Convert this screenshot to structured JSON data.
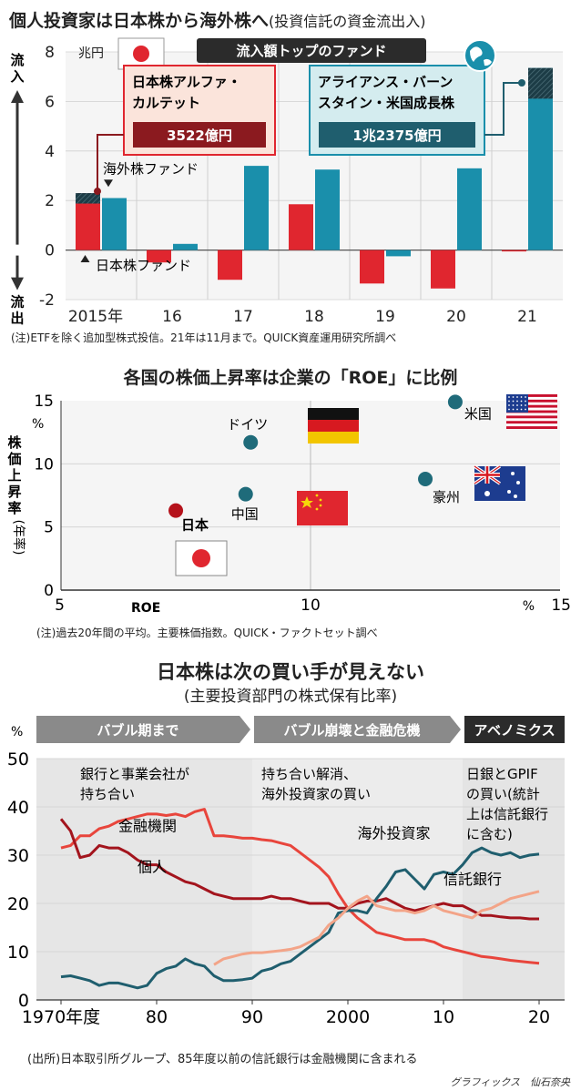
{
  "chart_data": [
    {
      "type": "bar",
      "title": "個人投資家は日本株から海外株へ",
      "subtitle": "(投資信託の資金流出入)",
      "unit": "兆円",
      "axis_labels": {
        "up": "流入",
        "down": "流出"
      },
      "categories": [
        "2015年",
        "16",
        "17",
        "18",
        "19",
        "20",
        "21"
      ],
      "series": [
        {
          "name": "日本株ファンド",
          "color": "#e0262f",
          "values": [
            2.3,
            -0.5,
            -1.2,
            1.85,
            -1.35,
            -1.55,
            -0.05
          ]
        },
        {
          "name": "海外株ファンド",
          "color": "#1a8fab",
          "values": [
            2.1,
            0.25,
            3.4,
            3.25,
            -0.25,
            3.3,
            7.35
          ]
        }
      ],
      "ylim": [
        -2,
        8
      ],
      "yticks": [
        -2,
        0,
        2,
        4,
        6,
        8
      ],
      "callout_header": "流入額トップのファンド",
      "callouts": [
        {
          "name": "日本株アルファ・カルテット",
          "line1": "日本株アルファ・",
          "line2": "カルテット",
          "value": "3522億円",
          "value_num": 0.3522,
          "category": "2015年"
        },
        {
          "name": "アライアンス・バーンスタイン・米国成長株",
          "line1": "アライアンス・バーン",
          "line2": "スタイン・米国成長株",
          "value": "1兆2375億円",
          "value_num": 1.2375,
          "category": "21"
        }
      ],
      "note": "(注)ETFを除く追加型株式投信。21年は11月まで。QUICK資産運用研究所調べ"
    },
    {
      "type": "scatter",
      "title": "各国の株価上昇率は企業の「ROE」に比例",
      "ylabel": "株価上昇率",
      "ylabel_sub": "(年率)",
      "y_unit": "%",
      "x_unit": "%",
      "xlabel": "ROE",
      "xlim": [
        5,
        15
      ],
      "ylim": [
        0,
        15
      ],
      "xticks": [
        5,
        10,
        15
      ],
      "yticks": [
        0,
        5,
        10,
        15
      ],
      "points": [
        {
          "name": "日本",
          "x": 7.3,
          "y": 6.3,
          "color": "#b5121b"
        },
        {
          "name": "中国",
          "x": 8.7,
          "y": 7.6,
          "color": "#1f6b7a"
        },
        {
          "name": "ドイツ",
          "x": 8.8,
          "y": 11.7,
          "color": "#1f6b7a"
        },
        {
          "name": "豪州",
          "x": 12.3,
          "y": 8.8,
          "color": "#1f6b7a"
        },
        {
          "name": "米国",
          "x": 12.9,
          "y": 14.9,
          "color": "#1f6b7a"
        }
      ],
      "note": "(注)過去20年間の平均。主要株価指数。QUICK・ファクトセット調べ"
    },
    {
      "type": "line",
      "title": "日本株は次の買い手が見えない",
      "subtitle": "(主要投資部門の株式保有比率)",
      "y_unit": "%",
      "ylim": [
        0,
        50
      ],
      "yticks": [
        0,
        10,
        20,
        30,
        40,
        50
      ],
      "xlim": [
        1970,
        2020
      ],
      "xticks": [
        {
          "v": 1970,
          "label": "1970年度"
        },
        {
          "v": 1980,
          "label": "80"
        },
        {
          "v": 1990,
          "label": "90"
        },
        {
          "v": 2000,
          "label": "2000"
        },
        {
          "v": 2010,
          "label": "10"
        },
        {
          "v": 2020,
          "label": "20"
        }
      ],
      "eras": [
        {
          "label": "バブル期まで",
          "from": 1970,
          "to": 1990,
          "text1": "銀行と事業会社が",
          "text2": "持ち合い"
        },
        {
          "label": "バブル崩壊と金融危機",
          "from": 1990,
          "to": 2012,
          "text1": "持ち合い解消、",
          "text2": "海外投資家の買い"
        },
        {
          "label": "アベノミクス",
          "from": 2012,
          "to": 2020,
          "text1": "日銀とGPIF",
          "text2": "の買い(統計",
          "text3": "上は信託銀行",
          "text4": "に含む)"
        }
      ],
      "series": [
        {
          "name": "金融機関",
          "color": "#e8453c",
          "x": [
            1970,
            1971,
            1972,
            1973,
            1974,
            1975,
            1976,
            1977,
            1978,
            1979,
            1980,
            1981,
            1982,
            1983,
            1984,
            1985,
            1986,
            1987,
            1988,
            1989,
            1990,
            1991,
            1992,
            1993,
            1994,
            1995,
            1996,
            1997,
            1998,
            1999,
            2000,
            2001,
            2002,
            2003,
            2004,
            2005,
            2006,
            2007,
            2008,
            2009,
            2010,
            2011,
            2012,
            2013,
            2014,
            2015,
            2016,
            2017,
            2018,
            2019,
            2020
          ],
          "values": [
            31.5,
            32,
            34,
            34,
            35.5,
            36,
            37,
            37.5,
            38,
            38.5,
            38.5,
            38.2,
            38.5,
            38,
            39,
            39.5,
            34,
            34,
            33.8,
            33.5,
            33.5,
            33.2,
            33,
            32.5,
            32,
            30.5,
            29,
            27.5,
            25.5,
            22,
            19,
            17,
            15.5,
            14,
            13.5,
            13,
            12.5,
            12.5,
            12.5,
            12,
            11,
            10.5,
            10,
            9.5,
            9,
            8.8,
            8.5,
            8.2,
            8,
            7.8,
            7.6
          ]
        },
        {
          "name": "個人",
          "color": "#a3141d",
          "x": [
            1970,
            1971,
            1972,
            1973,
            1974,
            1975,
            1976,
            1977,
            1978,
            1979,
            1980,
            1981,
            1982,
            1983,
            1984,
            1985,
            1986,
            1987,
            1988,
            1989,
            1990,
            1991,
            1992,
            1993,
            1994,
            1995,
            1996,
            1997,
            1998,
            1999,
            2000,
            2001,
            2002,
            2003,
            2004,
            2005,
            2006,
            2007,
            2008,
            2009,
            2010,
            2011,
            2012,
            2013,
            2014,
            2015,
            2016,
            2017,
            2018,
            2019,
            2020
          ],
          "values": [
            37.5,
            35,
            29.5,
            30,
            32,
            31.5,
            31.5,
            30.5,
            29,
            28,
            28,
            26.5,
            25.5,
            24.5,
            24,
            23,
            22,
            21.5,
            21,
            21,
            21,
            21,
            21.5,
            21,
            21,
            20.5,
            20,
            20,
            20,
            19,
            19,
            20,
            20.5,
            20.5,
            21,
            20,
            19,
            18.5,
            19,
            19.5,
            20,
            19.5,
            19.5,
            18.5,
            17.5,
            17.5,
            17.2,
            17,
            17,
            16.8,
            16.8
          ]
        },
        {
          "name": "海外投資家",
          "color": "#1f5e6e",
          "x": [
            1970,
            1971,
            1972,
            1973,
            1974,
            1975,
            1976,
            1977,
            1978,
            1979,
            1980,
            1981,
            1982,
            1983,
            1984,
            1985,
            1986,
            1987,
            1988,
            1989,
            1990,
            1991,
            1992,
            1993,
            1994,
            1995,
            1996,
            1997,
            1998,
            1999,
            2000,
            2001,
            2002,
            2003,
            2004,
            2005,
            2006,
            2007,
            2008,
            2009,
            2010,
            2011,
            2012,
            2013,
            2014,
            2015,
            2016,
            2017,
            2018,
            2019,
            2020
          ],
          "values": [
            4.8,
            5,
            4.5,
            4,
            3,
            3.5,
            3.5,
            3,
            2.5,
            3,
            5.5,
            6.5,
            7,
            8.5,
            7.5,
            7,
            5,
            4,
            4,
            4.2,
            4.5,
            6,
            6.5,
            7.5,
            8,
            9.5,
            11,
            12.5,
            14,
            18,
            18.5,
            18.5,
            18,
            21,
            23.5,
            26.5,
            27,
            25,
            23,
            26,
            26.5,
            26,
            28,
            30.5,
            31.5,
            30.5,
            30,
            30.5,
            29.5,
            30,
            30.2
          ]
        },
        {
          "name": "信託銀行",
          "color": "#f3a488",
          "x": [
            1986,
            1987,
            1988,
            1989,
            1990,
            1991,
            1992,
            1993,
            1994,
            1995,
            1996,
            1997,
            1998,
            1999,
            2000,
            2001,
            2002,
            2003,
            2004,
            2005,
            2006,
            2007,
            2008,
            2009,
            2010,
            2011,
            2012,
            2013,
            2014,
            2015,
            2016,
            2017,
            2018,
            2019,
            2020
          ],
          "values": [
            7.3,
            8.5,
            9,
            9.5,
            9.8,
            9.8,
            10,
            10.2,
            10.5,
            11,
            12,
            13,
            15.5,
            17,
            19,
            20.5,
            21.5,
            19.5,
            19,
            18.5,
            18.5,
            18,
            18.5,
            19.5,
            18.5,
            18,
            17.5,
            17,
            18.5,
            19,
            20,
            21,
            21.5,
            22,
            22.5
          ]
        }
      ],
      "note": "(出所)日本取引所グループ、85年度以前の信託銀行は金融機関に含まれる"
    }
  ],
  "credit": "グラフィックス　仙石奈央"
}
